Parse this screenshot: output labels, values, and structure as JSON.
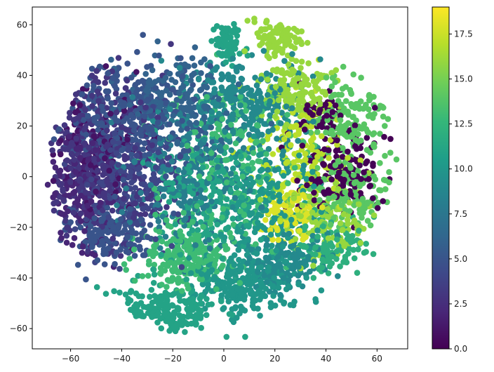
{
  "chart_data": {
    "type": "scatter",
    "title": "",
    "xlabel": "",
    "ylabel": "",
    "xlim": [
      -75,
      72
    ],
    "ylim": [
      -68,
      67
    ],
    "grid": false,
    "legend": "none",
    "marker_size_px": 4.3,
    "x_ticks": [
      -60,
      -40,
      -20,
      0,
      20,
      40,
      60
    ],
    "x_tick_labels": [
      "−60",
      "−40",
      "−20",
      "0",
      "20",
      "40",
      "60"
    ],
    "y_ticks": [
      60,
      40,
      20,
      0,
      -20,
      -40,
      -60
    ],
    "y_tick_labels": [
      "60",
      "40",
      "20",
      "0",
      "−20",
      "−40",
      "−60"
    ],
    "colorbar": {
      "colormap": "viridis",
      "range": [
        0.0,
        19.0
      ],
      "ticks": [
        0.0,
        2.5,
        5.0,
        7.5,
        10.0,
        12.5,
        15.0,
        17.5
      ],
      "tick_labels": [
        "0.0",
        "2.5",
        "5.0",
        "7.5",
        "10.0",
        "12.5",
        "15.0",
        "17.5"
      ],
      "colors": [
        "#440154",
        "#482878",
        "#3e4989",
        "#31688e",
        "#26828e",
        "#1f9e89",
        "#35b779",
        "#6ece58",
        "#b5de2b",
        "#fde725"
      ]
    },
    "clusters": [
      {
        "label": 3,
        "center": [
          -48,
          5
        ],
        "spread": [
          11,
          17
        ],
        "count": 420
      },
      {
        "label": 2,
        "center": [
          -55,
          -5
        ],
        "spread": [
          7,
          13
        ],
        "count": 160
      },
      {
        "label": 1,
        "center": [
          -52,
          12
        ],
        "spread": [
          8,
          10
        ],
        "count": 130
      },
      {
        "label": 5,
        "center": [
          -35,
          25
        ],
        "spread": [
          12,
          11
        ],
        "count": 300
      },
      {
        "label": 4,
        "center": [
          -38,
          0
        ],
        "spread": [
          10,
          14
        ],
        "count": 220
      },
      {
        "label": 6,
        "center": [
          -18,
          30
        ],
        "spread": [
          11,
          10
        ],
        "count": 200
      },
      {
        "label": 5,
        "center": [
          -45,
          -22
        ],
        "spread": [
          9,
          7
        ],
        "count": 160
      },
      {
        "label": 9,
        "center": [
          8,
          28
        ],
        "spread": [
          12,
          10
        ],
        "count": 280
      },
      {
        "label": 8,
        "center": [
          -15,
          0
        ],
        "spread": [
          12,
          14
        ],
        "count": 240
      },
      {
        "label": 11,
        "center": [
          -5,
          -10
        ],
        "spread": [
          12,
          12
        ],
        "count": 200
      },
      {
        "label": 10,
        "center": [
          18,
          -10
        ],
        "spread": [
          10,
          12
        ],
        "count": 180
      },
      {
        "label": 13,
        "center": [
          0,
          5
        ],
        "spread": [
          14,
          16
        ],
        "count": 200
      },
      {
        "label": 11,
        "center": [
          -22,
          -52
        ],
        "spread": [
          9,
          6
        ],
        "count": 230
      },
      {
        "label": 13,
        "center": [
          -15,
          -32
        ],
        "spread": [
          10,
          6
        ],
        "count": 220
      },
      {
        "label": 10,
        "center": [
          10,
          -42
        ],
        "spread": [
          10,
          7
        ],
        "count": 250
      },
      {
        "label": 9,
        "center": [
          22,
          -32
        ],
        "spread": [
          8,
          6
        ],
        "count": 150
      },
      {
        "label": 12,
        "center": [
          42,
          -28
        ],
        "spread": [
          7,
          5
        ],
        "count": 120
      },
      {
        "label": 11,
        "center": [
          2,
          52
        ],
        "spread": [
          3,
          4
        ],
        "count": 70
      },
      {
        "label": 16,
        "center": [
          22,
          56
        ],
        "spread": [
          5,
          4
        ],
        "count": 100
      },
      {
        "label": 16,
        "center": [
          28,
          35
        ],
        "spread": [
          7,
          7
        ],
        "count": 160
      },
      {
        "label": 14,
        "center": [
          50,
          22
        ],
        "spread": [
          8,
          9
        ],
        "count": 170
      },
      {
        "label": 0,
        "center": [
          45,
          2
        ],
        "spread": [
          9,
          9
        ],
        "count": 160
      },
      {
        "label": 0,
        "center": [
          37,
          25
        ],
        "spread": [
          4,
          4
        ],
        "count": 40
      },
      {
        "label": 17,
        "center": [
          30,
          10
        ],
        "spread": [
          9,
          10
        ],
        "count": 150
      },
      {
        "label": 16,
        "center": [
          38,
          -15
        ],
        "spread": [
          10,
          7
        ],
        "count": 160
      },
      {
        "label": 14,
        "center": [
          48,
          -8
        ],
        "spread": [
          8,
          6
        ],
        "count": 120
      },
      {
        "label": 18,
        "center": [
          25,
          -15
        ],
        "spread": [
          6,
          6
        ],
        "count": 90
      }
    ]
  }
}
